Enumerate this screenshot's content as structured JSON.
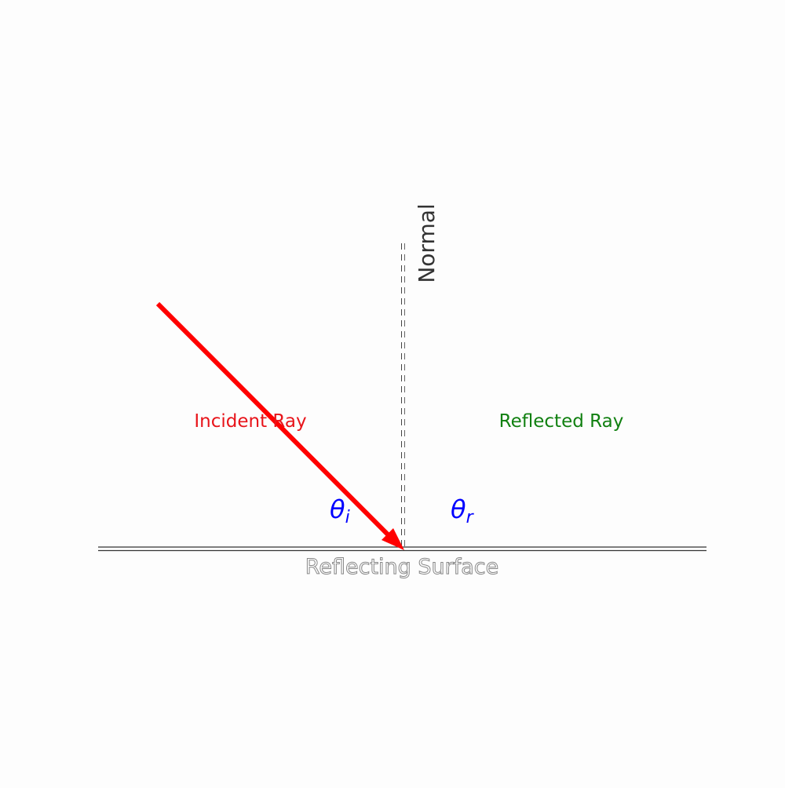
{
  "diagram": {
    "normal_label": "Normal",
    "surface_label": "Reflecting Surface",
    "incident_label": "Incident Ray",
    "reflected_label": "Reflected Ray",
    "theta_symbol": "θ",
    "theta_i_subscript": "i",
    "theta_r_subscript": "r"
  },
  "colors": {
    "incident": "#ff0000",
    "incident_text": "#e8141a",
    "reflected_text": "#118011",
    "angle": "#0000ff",
    "normal_text": "#333333",
    "surface_line": "#333333",
    "surface_text": "#ffffff",
    "surface_text_outline": "#888888",
    "background": "#fdfdfd"
  }
}
